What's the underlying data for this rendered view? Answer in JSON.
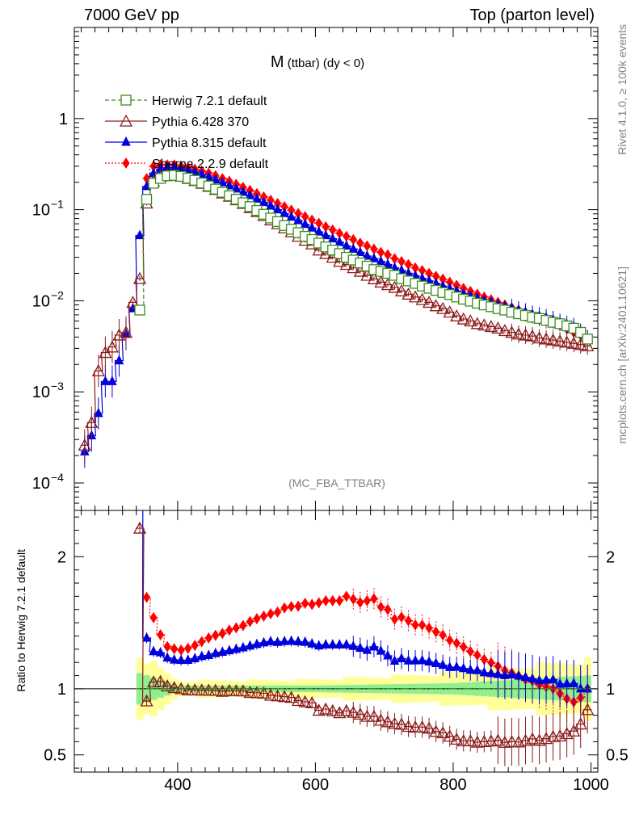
{
  "header": {
    "left": "7000 GeV pp",
    "right": "Top (parton level)"
  },
  "title": {
    "main": "M",
    "sub": " (ttbar) (dy < 0)"
  },
  "side_text": {
    "rivet": "Rivet 4.1.0, ≥ 100k events",
    "mcplots": "mcplots.cern.ch [arXiv:2401.10621]"
  },
  "analysis_id": "(MC_FBA_TTBAR)",
  "ratio_label": "Ratio to Herwig 7.2.1 default",
  "colors": {
    "herwig": "#3a8c1e",
    "pythia6": "#8b1a1a",
    "pythia8": "#0000dd",
    "sherpa": "#ff0000",
    "band_inner": "#90ee90",
    "band_outer": "#ffff99"
  },
  "chart_data": {
    "type": "line",
    "xlabel": "",
    "xlim": [
      250,
      1010
    ],
    "xticks": [
      400,
      600,
      800,
      1000
    ],
    "main": {
      "yscale": "log",
      "ylim": [
        5e-05,
        10
      ],
      "yticks": [
        {
          "v": 1,
          "base": "1",
          "exp": ""
        },
        {
          "v": 0.1,
          "base": "10",
          "exp": "−1"
        },
        {
          "v": 0.01,
          "base": "10",
          "exp": "−2"
        },
        {
          "v": 0.001,
          "base": "10",
          "exp": "−3"
        },
        {
          "v": 0.0001,
          "base": "10",
          "exp": "−4"
        }
      ]
    },
    "ratio": {
      "ylim": [
        0.37,
        2.35
      ],
      "yticks": [
        {
          "v": 2,
          "label": "2"
        },
        {
          "v": 1,
          "label": "1"
        },
        {
          "v": 0.5,
          "label": "0.5"
        }
      ],
      "band_x": [
        340,
        1000
      ],
      "band_inner_halfwidth": [
        0.15,
        0.03,
        0.03,
        0.05,
        0.12
      ],
      "band_outer_halfwidth": [
        0.28,
        0.06,
        0.07,
        0.12,
        0.22
      ],
      "band_nodes": [
        340,
        400,
        600,
        800,
        1000
      ]
    },
    "legend_position": "top-left",
    "series": [
      {
        "name": "Herwig 7.2.1 default",
        "key": "herwig",
        "marker": "square-open",
        "style": "dashed",
        "x": [
          345,
          355,
          365,
          375,
          385,
          395,
          405,
          415,
          425,
          435,
          445,
          455,
          465,
          475,
          485,
          495,
          505,
          515,
          525,
          535,
          545,
          555,
          565,
          575,
          585,
          595,
          605,
          615,
          625,
          635,
          645,
          655,
          665,
          675,
          685,
          695,
          705,
          715,
          725,
          735,
          745,
          755,
          765,
          775,
          785,
          795,
          805,
          815,
          825,
          835,
          845,
          855,
          865,
          875,
          885,
          895,
          905,
          915,
          925,
          935,
          945,
          955,
          965,
          975,
          985,
          995
        ],
        "values": [
          0.0079,
          0.13,
          0.195,
          0.22,
          0.235,
          0.238,
          0.232,
          0.222,
          0.21,
          0.196,
          0.182,
          0.168,
          0.155,
          0.142,
          0.13,
          0.119,
          0.108,
          0.098,
          0.089,
          0.081,
          0.074,
          0.067,
          0.061,
          0.056,
          0.051,
          0.047,
          0.043,
          0.039,
          0.036,
          0.033,
          0.03,
          0.028,
          0.026,
          0.024,
          0.022,
          0.021,
          0.02,
          0.019,
          0.0175,
          0.0165,
          0.0155,
          0.0145,
          0.0137,
          0.013,
          0.0123,
          0.0117,
          0.011,
          0.0104,
          0.0099,
          0.0094,
          0.009,
          0.0086,
          0.0082,
          0.0079,
          0.0075,
          0.0072,
          0.0069,
          0.0066,
          0.0064,
          0.0061,
          0.0058,
          0.0056,
          0.0053,
          0.005,
          0.0045,
          0.0038
        ]
      },
      {
        "name": "Pythia 6.428 370",
        "key": "pythia6",
        "marker": "triangle-open",
        "style": "solid",
        "x": [
          265,
          275,
          285,
          295,
          305,
          315,
          325,
          335,
          345,
          355,
          365,
          375,
          385,
          395,
          405,
          415,
          425,
          435,
          445,
          455,
          465,
          475,
          485,
          495,
          505,
          515,
          525,
          535,
          545,
          555,
          565,
          575,
          585,
          595,
          605,
          615,
          625,
          635,
          645,
          655,
          665,
          675,
          685,
          695,
          705,
          715,
          725,
          735,
          745,
          755,
          765,
          775,
          785,
          795,
          805,
          815,
          825,
          835,
          845,
          855,
          865,
          875,
          885,
          895,
          905,
          915,
          925,
          935,
          945,
          955,
          965,
          975,
          985,
          995
        ],
        "values": [
          0.00026,
          0.00046,
          0.0017,
          0.0027,
          0.0031,
          0.0042,
          0.0045,
          0.0096,
          0.0175,
          0.118,
          0.205,
          0.232,
          0.24,
          0.24,
          0.232,
          0.22,
          0.208,
          0.194,
          0.18,
          0.166,
          0.152,
          0.14,
          0.128,
          0.117,
          0.105,
          0.095,
          0.086,
          0.077,
          0.07,
          0.063,
          0.057,
          0.051,
          0.046,
          0.042,
          0.036,
          0.033,
          0.03,
          0.027,
          0.025,
          0.023,
          0.021,
          0.019,
          0.0174,
          0.016,
          0.015,
          0.014,
          0.0128,
          0.0118,
          0.011,
          0.0103,
          0.0096,
          0.0088,
          0.0082,
          0.0075,
          0.0068,
          0.0063,
          0.006,
          0.0056,
          0.0054,
          0.0052,
          0.005,
          0.0047,
          0.0045,
          0.0043,
          0.0042,
          0.0041,
          0.0039,
          0.0038,
          0.0037,
          0.0036,
          0.0035,
          0.0034,
          0.0033,
          0.0032
        ]
      },
      {
        "name": "Pythia 8.315 default",
        "key": "pythia8",
        "marker": "triangle-filled",
        "style": "solid",
        "x": [
          265,
          275,
          285,
          295,
          305,
          315,
          325,
          335,
          345,
          355,
          365,
          375,
          385,
          395,
          405,
          415,
          425,
          435,
          445,
          455,
          465,
          475,
          485,
          495,
          505,
          515,
          525,
          535,
          545,
          555,
          565,
          575,
          585,
          595,
          605,
          615,
          625,
          635,
          645,
          655,
          665,
          675,
          685,
          695,
          705,
          715,
          725,
          735,
          745,
          755,
          765,
          775,
          785,
          795,
          805,
          815,
          825,
          835,
          845,
          855,
          865,
          875,
          885,
          895,
          905,
          915,
          925,
          935,
          945,
          955,
          965,
          975,
          985,
          995
        ],
        "values": [
          0.00022,
          0.00033,
          0.00058,
          0.0013,
          0.0013,
          0.0022,
          0.0043,
          0.0082,
          0.052,
          0.18,
          0.25,
          0.28,
          0.29,
          0.29,
          0.282,
          0.27,
          0.258,
          0.244,
          0.228,
          0.213,
          0.198,
          0.183,
          0.169,
          0.156,
          0.143,
          0.131,
          0.12,
          0.11,
          0.1,
          0.091,
          0.083,
          0.076,
          0.069,
          0.063,
          0.057,
          0.052,
          0.048,
          0.044,
          0.04,
          0.037,
          0.034,
          0.031,
          0.029,
          0.027,
          0.025,
          0.023,
          0.0215,
          0.02,
          0.0188,
          0.0176,
          0.0165,
          0.0155,
          0.0145,
          0.0136,
          0.0128,
          0.012,
          0.0113,
          0.0107,
          0.0101,
          0.0096,
          0.0091,
          0.0087,
          0.0083,
          0.0079,
          0.0075,
          0.0071,
          0.0068,
          0.0065,
          0.0062,
          0.0058,
          0.0055,
          0.0052,
          0.0045,
          0.0038
        ]
      },
      {
        "name": "Sherpa 2.2.9 default",
        "key": "sherpa",
        "marker": "diamond-filled",
        "style": "dotted",
        "x": [
          355,
          365,
          375,
          385,
          395,
          405,
          415,
          425,
          435,
          445,
          455,
          465,
          475,
          485,
          495,
          505,
          515,
          525,
          535,
          545,
          555,
          565,
          575,
          585,
          595,
          605,
          615,
          625,
          635,
          645,
          655,
          665,
          675,
          685,
          695,
          705,
          715,
          725,
          735,
          745,
          755,
          765,
          775,
          785,
          795,
          805,
          815,
          825,
          835,
          845,
          855,
          865,
          875,
          885,
          895,
          905,
          915,
          925,
          935,
          945,
          955,
          965,
          975,
          985,
          995
        ],
        "values": [
          0.22,
          0.3,
          0.31,
          0.31,
          0.31,
          0.3,
          0.29,
          0.279,
          0.266,
          0.252,
          0.236,
          0.22,
          0.205,
          0.19,
          0.176,
          0.163,
          0.15,
          0.138,
          0.127,
          0.117,
          0.108,
          0.099,
          0.091,
          0.084,
          0.077,
          0.071,
          0.065,
          0.06,
          0.055,
          0.051,
          0.047,
          0.043,
          0.04,
          0.037,
          0.034,
          0.032,
          0.029,
          0.027,
          0.025,
          0.023,
          0.0215,
          0.02,
          0.0186,
          0.0173,
          0.016,
          0.0148,
          0.0137,
          0.0127,
          0.0118,
          0.011,
          0.0103,
          0.0096,
          0.009,
          0.0084,
          0.0079,
          0.0074,
          0.007,
          0.0066,
          0.0062,
          0.0058,
          0.0054,
          0.0049,
          0.0045,
          0.0042,
          0.0038
        ]
      }
    ]
  }
}
